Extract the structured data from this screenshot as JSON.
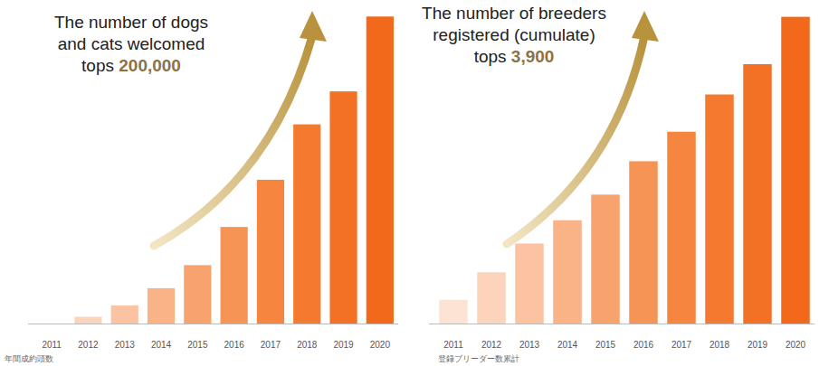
{
  "chart_data": [
    {
      "type": "bar",
      "title": "The number of dogs and cats welcomed tops",
      "title_highlight": "200,000",
      "xlabel": "年間成約頭数",
      "categories": [
        "2011",
        "2012",
        "2013",
        "2014",
        "2015",
        "2016",
        "2017",
        "2018",
        "2019",
        "2020"
      ],
      "values": [
        0,
        4500,
        12100,
        23600,
        39000,
        64500,
        96000,
        133000,
        155000,
        205000
      ],
      "colors": [
        "#fde3d3",
        "#fcd3bb",
        "#fbc3a1",
        "#f9b386",
        "#f8a36d",
        "#f69455",
        "#f5853f",
        "#f47a30",
        "#f37125",
        "#f2691b"
      ],
      "ylim": [
        0,
        210000
      ],
      "tick_labels": "x",
      "grid": false,
      "data_labels": false
    },
    {
      "type": "bar",
      "title": "The number of breeders registered (cumulate) tops",
      "title_highlight": "3,900",
      "xlabel": "登録ブリーダー数累計",
      "categories": [
        "2011",
        "2012",
        "2013",
        "2014",
        "2015",
        "2016",
        "2017",
        "2018",
        "2019",
        "2020"
      ],
      "values": [
        305,
        660,
        1030,
        1330,
        1660,
        2090,
        2470,
        2950,
        3340,
        3950
      ],
      "colors": [
        "#fde3d3",
        "#fcd3bb",
        "#fbc3a1",
        "#f9b386",
        "#f8a36d",
        "#f69455",
        "#f5853f",
        "#f47a30",
        "#f37125",
        "#f2691b"
      ],
      "ylim": [
        0,
        4050
      ],
      "tick_labels": "x",
      "grid": false,
      "data_labels": false
    }
  ]
}
